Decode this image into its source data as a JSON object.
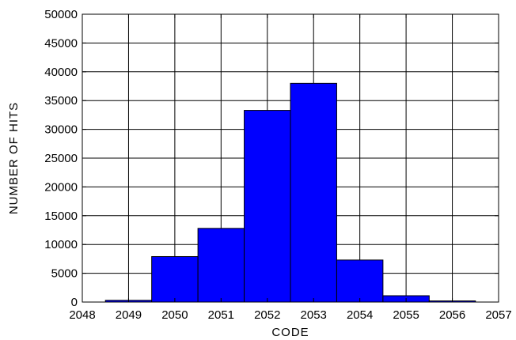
{
  "chart_data": {
    "type": "bar",
    "title": "",
    "xlabel": "CODE",
    "ylabel": "NUMBER OF HITS",
    "xlim": [
      2048,
      2057
    ],
    "ylim": [
      0,
      50000
    ],
    "grid": true,
    "x_ticks": [
      "2048",
      "2049",
      "2050",
      "2051",
      "2052",
      "2053",
      "2054",
      "2055",
      "2056",
      "2057"
    ],
    "y_ticks": [
      "0",
      "5000",
      "10000",
      "15000",
      "20000",
      "25000",
      "30000",
      "35000",
      "40000",
      "45000",
      "50000"
    ],
    "bar_width": 1,
    "bar_color": "#0000ff",
    "categories": [
      "2049",
      "2050",
      "2051",
      "2052",
      "2053",
      "2054",
      "2055",
      "2056"
    ],
    "x": [
      2049,
      2050,
      2051,
      2052,
      2053,
      2054,
      2055,
      2056
    ],
    "values": [
      300,
      7900,
      12800,
      33300,
      38000,
      7300,
      1100,
      200
    ]
  }
}
